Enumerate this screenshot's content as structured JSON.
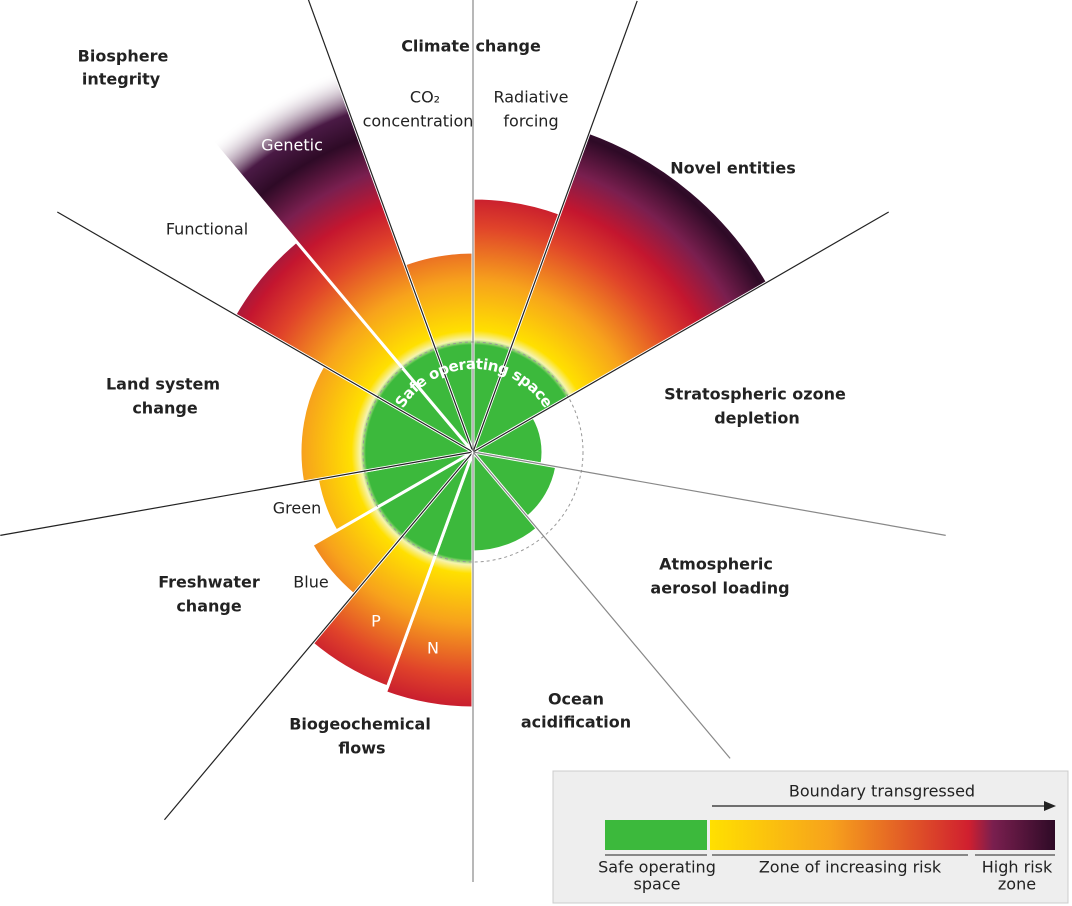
{
  "diagram": {
    "safe_label": "Safe operating space",
    "boundaries": [
      {
        "label": [
          "Climate change"
        ],
        "parts": [
          [
            "CO₂",
            "concentration"
          ],
          [
            "Radiative",
            "forcing"
          ]
        ]
      },
      {
        "label": [
          "Novel entities"
        ]
      },
      {
        "label": [
          "Stratospheric ozone",
          "depletion"
        ]
      },
      {
        "label": [
          "Atmospheric",
          "aerosol loading"
        ]
      },
      {
        "label": [
          "Ocean",
          "acidification"
        ]
      },
      {
        "label": [
          "Biogeochemical",
          "flows"
        ],
        "parts": [
          [
            "P"
          ],
          [
            "N"
          ]
        ]
      },
      {
        "label": [
          "Freshwater",
          "change"
        ],
        "parts": [
          [
            "Blue"
          ],
          [
            "Green"
          ]
        ]
      },
      {
        "label": [
          "Land system",
          "change"
        ]
      },
      {
        "label": [
          "Biosphere",
          "integrity"
        ],
        "parts": [
          [
            "Functional"
          ],
          [
            "Genetic"
          ]
        ]
      }
    ],
    "legend": {
      "arrow_label": "Boundary transgressed",
      "safe": [
        "Safe operating",
        "space"
      ],
      "increasing": [
        "Zone of increasing risk"
      ],
      "high": [
        "High risk",
        "zone"
      ]
    }
  }
}
